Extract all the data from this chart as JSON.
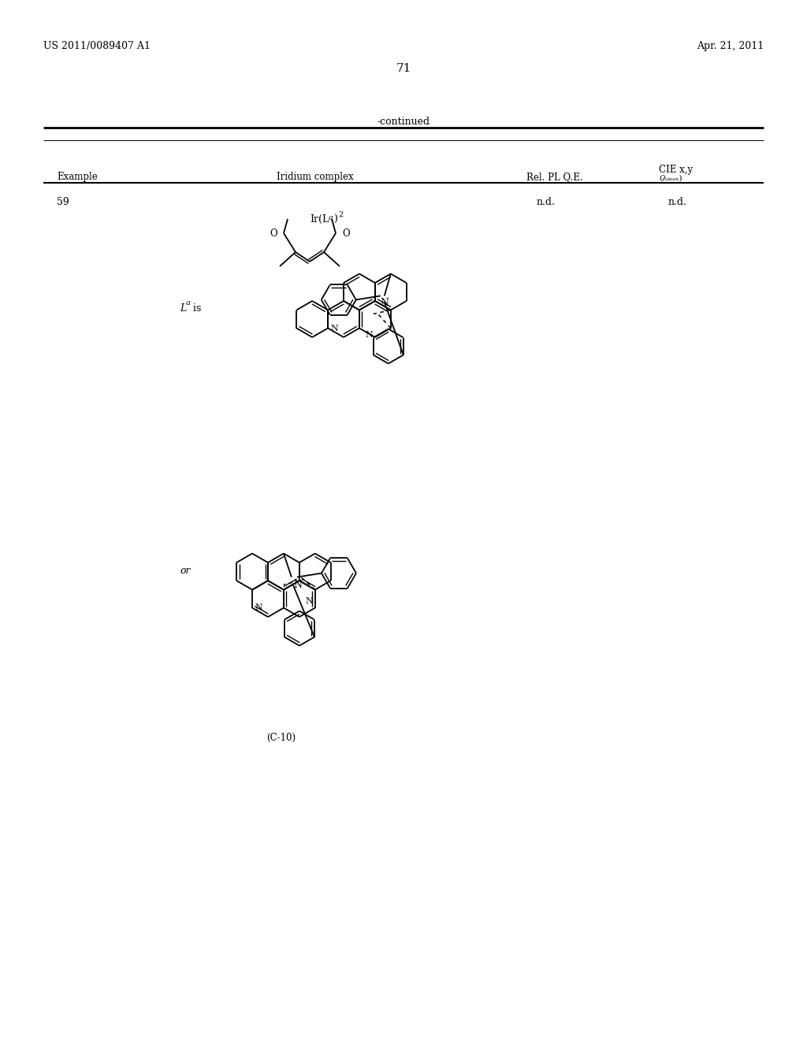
{
  "background_color": "#ffffff",
  "page_header_left": "US 2011/0089407 A1",
  "page_header_right": "Apr. 21, 2011",
  "page_number": "71",
  "continued_text": "-continued",
  "col1": "Example",
  "col2": "Iridium complex",
  "col3": "Rel. PL Q.E.",
  "col4a": "CIE x,y",
  "col4b": "(λₘₐₓ)",
  "example_number": "59",
  "val1": "n.d.",
  "val2": "n.d.",
  "label_C10": "(C-10)"
}
